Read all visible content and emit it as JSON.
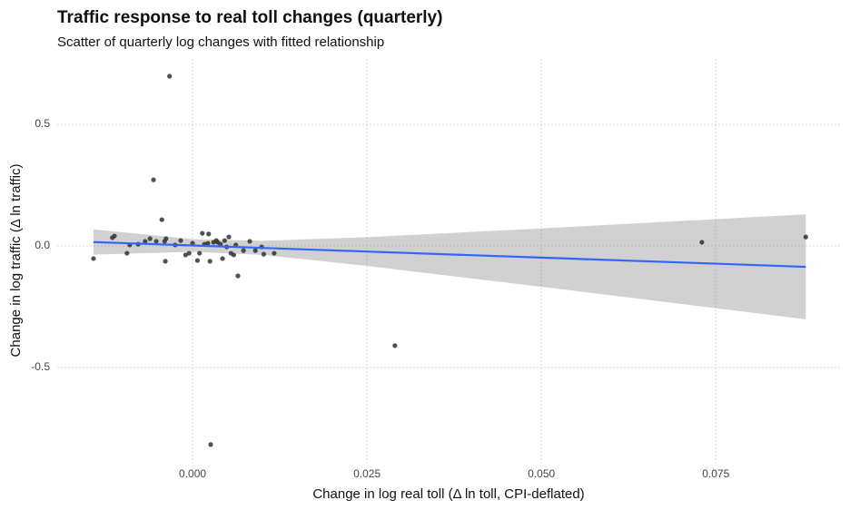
{
  "chart_data": {
    "type": "scatter",
    "title": "Traffic response to real toll changes (quarterly)",
    "subtitle": "Scatter of quarterly log changes with fitted relationship",
    "x_label": "Change in log real toll (Δ ln toll, CPI-deflated)",
    "y_label": "Change in log traffic (Δ ln traffic)",
    "xlim": [
      -0.0194,
      0.0928
    ],
    "ylim": [
      -0.892,
      0.769
    ],
    "xticks": [
      {
        "value": 0,
        "label": "0.000"
      },
      {
        "value": 0.025,
        "label": "0.025"
      },
      {
        "value": 0.05,
        "label": "0.050"
      },
      {
        "value": 0.075,
        "label": "0.075"
      }
    ],
    "yticks": [
      -0.5,
      {
        "value": 0,
        "label": "0.0"
      },
      0.5
    ],
    "grid": true,
    "series": [
      {
        "color": "#333333",
        "x": [
          -0.0142,
          -0.0115,
          -0.0112,
          -0.0094,
          -0.009,
          -0.0078,
          -0.0068,
          -0.0061,
          -0.0056,
          -0.0052,
          -0.0044,
          -0.004,
          -0.0039,
          -0.0038,
          -0.0033,
          -0.0025,
          -0.0017,
          -0.001,
          -0.0005,
          0,
          0.0007,
          0.001,
          0.0014,
          0.0017,
          0.0022,
          0.0023,
          0.0025,
          0.0026,
          0.003,
          0.0034,
          0.0036,
          0.004,
          0.0043,
          0.0046,
          0.0049,
          0.0052,
          0.0055,
          0.0059,
          0.0062,
          0.0065,
          0.0073,
          0.0082,
          0.009,
          0.0099,
          0.0102,
          0.0117,
          0.029,
          0.073,
          0.0879
        ],
        "values": [
          -0.052,
          0.034,
          0.041,
          -0.03,
          0.004,
          0.007,
          0.019,
          0.03,
          0.272,
          0.019,
          0.108,
          0.019,
          -0.063,
          0.03,
          0.698,
          0.004,
          0.022,
          -0.037,
          -0.03,
          0.011,
          -0.06,
          -0.03,
          0.052,
          0.007,
          0.011,
          0.049,
          -0.063,
          -0.817,
          0.015,
          0.022,
          0.015,
          0.007,
          -0.052,
          0.022,
          -0.004,
          0.037,
          -0.03,
          -0.037,
          0.004,
          -0.123,
          -0.019,
          0.019,
          -0.019,
          -0.004,
          -0.034,
          -0.03,
          -0.41,
          0.015,
          0.037
        ]
      }
    ],
    "fit": {
      "color": "#3366ff",
      "band_color": "#999999",
      "x": [
        -0.0142,
        0,
        0.01,
        0.025,
        0.05,
        0.075,
        0.0879
      ],
      "values": [
        0.016,
        0.002,
        -0.008,
        -0.023,
        -0.048,
        -0.073,
        -0.086
      ],
      "lower": [
        -0.036,
        -0.024,
        -0.037,
        -0.082,
        -0.168,
        -0.256,
        -0.302
      ],
      "upper": [
        0.068,
        0.028,
        0.021,
        0.036,
        0.072,
        0.11,
        0.13
      ]
    }
  }
}
